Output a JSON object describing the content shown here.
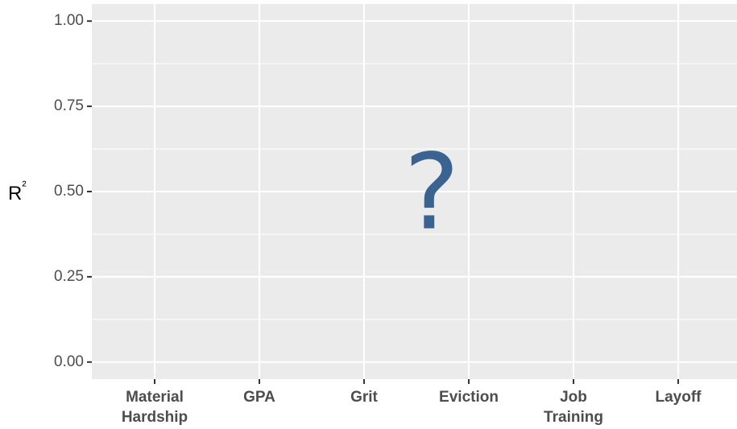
{
  "chart_data": {
    "type": "bar",
    "y_label": "R²",
    "annotation": "?",
    "categories": [
      "Material\nHardship",
      "GPA",
      "Grit",
      "Eviction",
      "Job\nTraining",
      "Layoff"
    ],
    "ylim": [
      -0.05,
      1.05
    ],
    "yticks": [
      {
        "value": 0,
        "label": "0.00"
      },
      {
        "value": 0.25,
        "label": "0.25"
      },
      {
        "value": 0.5,
        "label": "0.50"
      },
      {
        "value": 0.75,
        "label": "0.75"
      },
      {
        "value": 1,
        "label": "1.00"
      }
    ],
    "grid": true,
    "panel_color": "#ebebeb",
    "grid_color": "#ffffff"
  }
}
